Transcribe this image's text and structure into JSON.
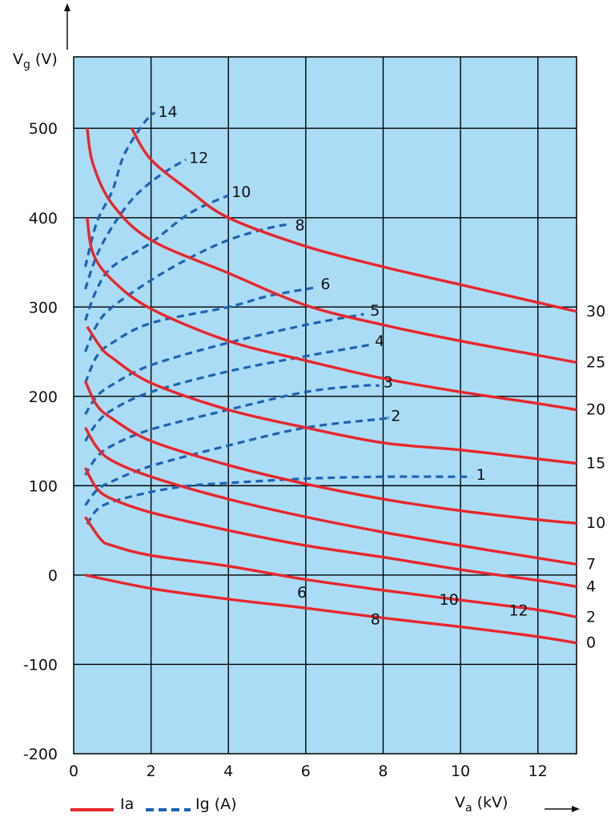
{
  "chart_data": {
    "type": "line",
    "axes": {
      "y_label": {
        "main": "V",
        "sub": "g",
        "rest": " (V)"
      },
      "x_label": {
        "main": "V",
        "sub": "a",
        "rest": " (kV)"
      },
      "xlim": [
        0,
        13
      ],
      "ylim": [
        -200,
        580
      ],
      "x_ticks": [
        0,
        2,
        4,
        6,
        8,
        10,
        12
      ],
      "y_ticks": [
        -200,
        -100,
        0,
        100,
        200,
        300,
        400,
        500
      ],
      "grid": true
    },
    "legend": {
      "placement": "bottom-left",
      "items": [
        {
          "label": "Ia",
          "style": "solid",
          "color": "#e8262c"
        },
        {
          "label": "Ig (A)",
          "style": "dashed",
          "color": "#1c63b4"
        }
      ]
    },
    "colors": {
      "plot_background": "#aadcf5",
      "ia": "#e8262c",
      "ig": "#1c63b4",
      "grid": "#000000"
    },
    "ia_series": [
      {
        "name": "0",
        "label_position": "right",
        "points": [
          [
            0.3,
            0
          ],
          [
            2,
            -15
          ],
          [
            4,
            -27
          ],
          [
            6,
            -37
          ],
          [
            8,
            -48
          ],
          [
            10,
            -58
          ],
          [
            12,
            -69
          ],
          [
            13,
            -76
          ]
        ]
      },
      {
        "name": "2",
        "label_position": "right",
        "points": [
          [
            0.3,
            65
          ],
          [
            0.7,
            40
          ],
          [
            1,
            33
          ],
          [
            2,
            22
          ],
          [
            4,
            10
          ],
          [
            6,
            -5
          ],
          [
            8,
            -17
          ],
          [
            10,
            -28
          ],
          [
            12,
            -39
          ],
          [
            13,
            -47
          ]
        ]
      },
      {
        "name": "4",
        "label_position": "right",
        "points": [
          [
            0.3,
            120
          ],
          [
            0.6,
            97
          ],
          [
            1,
            85
          ],
          [
            2,
            70
          ],
          [
            4,
            50
          ],
          [
            6,
            33
          ],
          [
            8,
            20
          ],
          [
            10,
            6
          ],
          [
            12,
            -6
          ],
          [
            13,
            -13
          ]
        ]
      },
      {
        "name": "7",
        "label_position": "right",
        "points": [
          [
            0.3,
            165
          ],
          [
            0.6,
            143
          ],
          [
            1,
            128
          ],
          [
            2,
            110
          ],
          [
            4,
            85
          ],
          [
            6,
            65
          ],
          [
            8,
            48
          ],
          [
            10,
            33
          ],
          [
            12,
            19
          ],
          [
            13,
            12
          ]
        ]
      },
      {
        "name": "10",
        "label_position": "right",
        "points": [
          [
            0.3,
            217
          ],
          [
            0.6,
            190
          ],
          [
            1,
            175
          ],
          [
            2,
            150
          ],
          [
            4,
            123
          ],
          [
            6,
            102
          ],
          [
            8,
            85
          ],
          [
            10,
            72
          ],
          [
            12,
            62
          ],
          [
            13,
            58
          ]
        ]
      },
      {
        "name": "15",
        "label_position": "right",
        "points": [
          [
            0.35,
            278
          ],
          [
            0.7,
            255
          ],
          [
            1,
            243
          ],
          [
            2,
            215
          ],
          [
            4,
            185
          ],
          [
            6,
            165
          ],
          [
            8,
            148
          ],
          [
            10,
            140
          ],
          [
            12,
            130
          ],
          [
            13,
            125
          ]
        ]
      },
      {
        "name": "20",
        "label_position": "right",
        "points": [
          [
            0.35,
            400
          ],
          [
            0.5,
            360
          ],
          [
            1,
            330
          ],
          [
            2,
            298
          ],
          [
            4,
            262
          ],
          [
            6,
            240
          ],
          [
            8,
            220
          ],
          [
            10,
            205
          ],
          [
            12,
            192
          ],
          [
            13,
            185
          ]
        ]
      },
      {
        "name": "25",
        "label_position": "right",
        "points": [
          [
            0.35,
            500
          ],
          [
            0.5,
            460
          ],
          [
            1,
            415
          ],
          [
            2,
            375
          ],
          [
            4,
            338
          ],
          [
            6,
            302
          ],
          [
            8,
            280
          ],
          [
            10,
            262
          ],
          [
            12,
            246
          ],
          [
            13,
            238
          ]
        ]
      },
      {
        "name": "30",
        "label_position": "right",
        "points": [
          [
            1.5,
            500
          ],
          [
            2,
            465
          ],
          [
            3,
            430
          ],
          [
            4,
            400
          ],
          [
            6,
            368
          ],
          [
            8,
            345
          ],
          [
            10,
            325
          ],
          [
            12,
            305
          ],
          [
            13,
            295
          ]
        ]
      }
    ],
    "ig_series": [
      {
        "name": "1",
        "label_offset": [
          5,
          -2
        ],
        "points": [
          [
            0.35,
            57
          ],
          [
            0.6,
            73
          ],
          [
            1,
            82
          ],
          [
            2,
            93
          ],
          [
            3,
            100
          ],
          [
            4,
            103
          ],
          [
            6,
            108
          ],
          [
            8,
            110
          ],
          [
            10,
            110
          ],
          [
            10.3,
            110
          ]
        ]
      },
      {
        "name": "2",
        "label_offset": [
          5,
          -2
        ],
        "points": [
          [
            0.3,
            78
          ],
          [
            0.6,
            95
          ],
          [
            1,
            105
          ],
          [
            2,
            122
          ],
          [
            4,
            145
          ],
          [
            6,
            165
          ],
          [
            8,
            175
          ],
          [
            8.1,
            176
          ]
        ]
      },
      {
        "name": "3",
        "label_offset": [
          5,
          -4
        ],
        "points": [
          [
            0.3,
            112
          ],
          [
            0.6,
            132
          ],
          [
            1,
            145
          ],
          [
            2,
            163
          ],
          [
            4,
            185
          ],
          [
            6,
            205
          ],
          [
            7.5,
            212
          ],
          [
            7.9,
            212
          ]
        ]
      },
      {
        "name": "4",
        "label_offset": [
          4,
          -4
        ],
        "points": [
          [
            0.3,
            150
          ],
          [
            0.6,
            170
          ],
          [
            1,
            185
          ],
          [
            2,
            205
          ],
          [
            4,
            228
          ],
          [
            6,
            245
          ],
          [
            7.7,
            258
          ]
        ]
      },
      {
        "name": "5",
        "label_offset": [
          8,
          -4
        ],
        "points": [
          [
            0.3,
            180
          ],
          [
            0.6,
            200
          ],
          [
            1,
            213
          ],
          [
            2,
            235
          ],
          [
            4,
            260
          ],
          [
            6,
            280
          ],
          [
            7.5,
            292
          ]
        ]
      },
      {
        "name": "6",
        "label_offset": [
          4,
          -4
        ],
        "points": [
          [
            0.3,
            215
          ],
          [
            0.6,
            245
          ],
          [
            1,
            260
          ],
          [
            2,
            282
          ],
          [
            4,
            300
          ],
          [
            5,
            312
          ],
          [
            6,
            320
          ],
          [
            6.3,
            322
          ]
        ]
      },
      {
        "name": "8",
        "label_offset": [
          6,
          2
        ],
        "points": [
          [
            0.3,
            250
          ],
          [
            0.6,
            280
          ],
          [
            1,
            300
          ],
          [
            2,
            330
          ],
          [
            3,
            355
          ],
          [
            4,
            375
          ],
          [
            5,
            388
          ],
          [
            5.6,
            393
          ]
        ]
      },
      {
        "name": "10",
        "label_offset": [
          4,
          -4
        ],
        "points": [
          [
            0.3,
            285
          ],
          [
            0.6,
            320
          ],
          [
            1,
            345
          ],
          [
            2,
            372
          ],
          [
            3,
            405
          ],
          [
            4,
            425
          ]
        ]
      },
      {
        "name": "12",
        "label_offset": [
          4,
          -2
        ],
        "points": [
          [
            0.3,
            320
          ],
          [
            0.6,
            358
          ],
          [
            1,
            390
          ],
          [
            1.5,
            420
          ],
          [
            2,
            440
          ],
          [
            2.5,
            455
          ],
          [
            2.9,
            465
          ]
        ]
      },
      {
        "name": "14",
        "label_offset": [
          4,
          0
        ],
        "points": [
          [
            0.3,
            345
          ],
          [
            0.6,
            395
          ],
          [
            1,
            430
          ],
          [
            1.3,
            470
          ],
          [
            1.8,
            505
          ],
          [
            2.1,
            518
          ]
        ]
      }
    ],
    "ia_point_labels": [
      {
        "text": "6",
        "x": 5.9,
        "y": -20
      },
      {
        "text": "8",
        "x": 7.8,
        "y": -50
      },
      {
        "text": "10",
        "x": 9.7,
        "y": -28
      },
      {
        "text": "12",
        "x": 11.5,
        "y": -40
      }
    ]
  }
}
